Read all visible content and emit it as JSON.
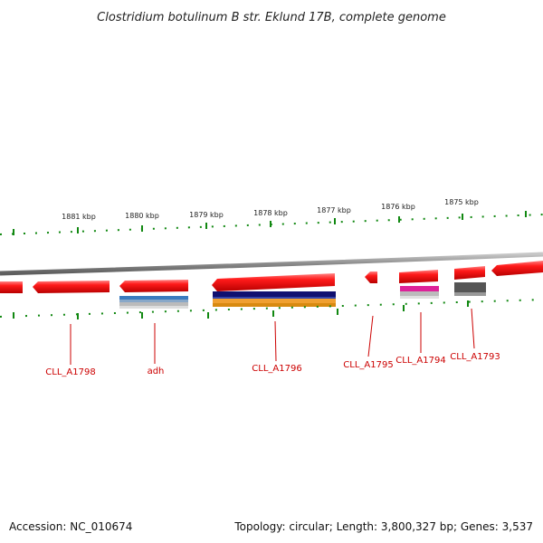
{
  "title": "Clostridium botulinum B str. Eklund 17B, complete genome",
  "footer": {
    "accession": "Accession: NC_010674",
    "summary": "Topology: circular; Length: 3,800,327 bp; Genes: 3,537"
  },
  "colors": {
    "gene": "#ee1111",
    "backbone": "#888888",
    "tick": "#118811",
    "label": "#cc0000"
  },
  "ticks": [
    "1881 kbp",
    "1880 kbp",
    "1879 kbp",
    "1878 kbp",
    "1877 kbp",
    "1876 kbp",
    "1875 kbp"
  ],
  "genes": [
    "CLL_A1798",
    "adh",
    "CLL_A1796",
    "CLL_A1795",
    "CLL_A1794",
    "CLL_A1793"
  ]
}
